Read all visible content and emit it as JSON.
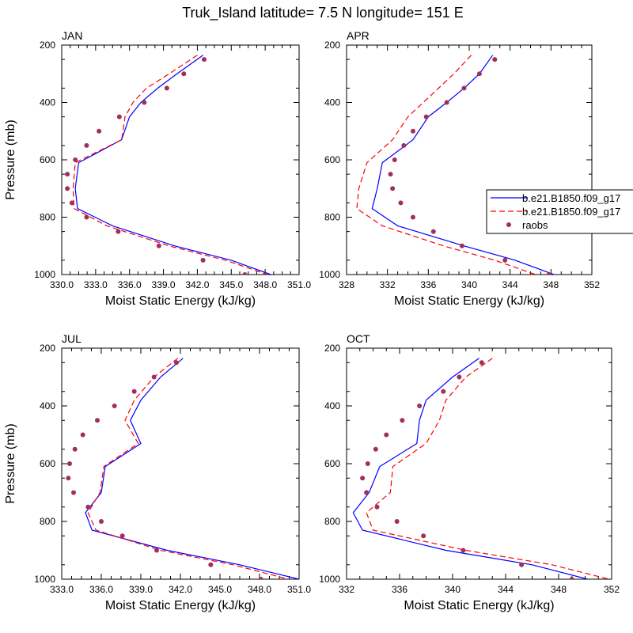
{
  "title": "Truk_Island  latitude= 7.5 N longitude= 151 E",
  "colors": {
    "model1": "#0000ff",
    "model2": "#ff0000",
    "raobs": "#a0305a",
    "axis": "#000000"
  },
  "legend": {
    "placement": "right of APR panel",
    "entries": [
      {
        "label": "b.e21.B1850.f09_g17",
        "style": "solid",
        "color": "#0000ff"
      },
      {
        "label": "b.e21.B1850.f09_g17",
        "style": "dashed",
        "color": "#ff0000"
      },
      {
        "label": "raobs",
        "style": "marker",
        "color": "#a0305a"
      }
    ]
  },
  "chart_data": [
    {
      "type": "line",
      "panel": "JAN",
      "xlabel": "Moist Static Energy (kJ/kg)",
      "ylabel": "Pressure (mb)",
      "xlim": [
        330,
        351
      ],
      "xticks": [
        330,
        333,
        336,
        339,
        342,
        345,
        348,
        351
      ],
      "xtick_labels": [
        "330.0",
        "333.0",
        "336.0",
        "339.0",
        "342.0",
        "345.0",
        "348.0",
        "351.0"
      ],
      "ylim": [
        200,
        1000
      ],
      "yticks": [
        200,
        400,
        600,
        800,
        1000
      ],
      "ytick_labels": [
        "200",
        "400",
        "600",
        "800",
        "1000"
      ],
      "series": [
        {
          "name": "b.e21.B1850.f09_g17 (solid)",
          "p": [
            235,
            300,
            350,
            400,
            450,
            530,
            610,
            700,
            770,
            830,
            900,
            950,
            1000
          ],
          "x": [
            342.5,
            340.2,
            338.5,
            337.0,
            336.0,
            335.3,
            331.5,
            331.2,
            331.4,
            334.5,
            340.0,
            345.0,
            348.5
          ]
        },
        {
          "name": "b.e21.B1850.f09_g17 (dashed)",
          "p": [
            235,
            300,
            350,
            400,
            450,
            530,
            610,
            700,
            770,
            830,
            900,
            950,
            1000
          ],
          "x": [
            342.0,
            339.5,
            337.5,
            336.3,
            335.6,
            335.3,
            331.2,
            331.0,
            331.1,
            334.0,
            339.5,
            344.5,
            348.2
          ]
        },
        {
          "name": "raobs",
          "p": [
            250,
            300,
            350,
            400,
            450,
            500,
            550,
            600,
            650,
            700,
            750,
            800,
            850,
            900,
            950,
            1000
          ],
          "x": [
            342.6,
            340.8,
            339.3,
            337.3,
            335.1,
            333.3,
            332.2,
            331.2,
            330.5,
            330.5,
            330.9,
            332.2,
            335.0,
            338.6,
            342.5,
            346.2
          ]
        }
      ]
    },
    {
      "type": "line",
      "panel": "APR",
      "xlabel": "Moist Static Energy (kJ/kg)",
      "ylabel": "",
      "xlim": [
        328,
        352
      ],
      "xticks": [
        328,
        332,
        336,
        340,
        344,
        348,
        352
      ],
      "xtick_labels": [
        "328",
        "332",
        "336",
        "340",
        "344",
        "348",
        "352"
      ],
      "ylim": [
        200,
        1000
      ],
      "yticks": [
        200,
        400,
        600,
        800,
        1000
      ],
      "ytick_labels": [
        "200",
        "400",
        "600",
        "800",
        "1000"
      ],
      "series": [
        {
          "name": "b.e21.B1850.f09_g17 (solid)",
          "p": [
            235,
            300,
            350,
            400,
            450,
            530,
            610,
            700,
            770,
            830,
            900,
            950,
            1000
          ],
          "x": [
            342.3,
            341.0,
            339.5,
            337.8,
            336.0,
            334.5,
            331.5,
            331.0,
            330.5,
            333.0,
            339.5,
            344.5,
            348.3
          ]
        },
        {
          "name": "b.e21.B1850.f09_g17 (dashed)",
          "p": [
            235,
            300,
            350,
            400,
            450,
            530,
            610,
            700,
            770,
            830,
            900,
            950,
            1000
          ],
          "x": [
            340.2,
            338.5,
            337.0,
            335.5,
            334.0,
            332.5,
            330.0,
            329.2,
            329.0,
            331.5,
            337.5,
            342.5,
            346.5
          ]
        },
        {
          "name": "raobs",
          "p": [
            250,
            300,
            350,
            400,
            450,
            500,
            550,
            600,
            650,
            700,
            750,
            800,
            850,
            900,
            950,
            1000
          ],
          "x": [
            342.5,
            341.0,
            339.5,
            337.8,
            335.8,
            334.5,
            333.6,
            332.7,
            332.3,
            332.5,
            333.3,
            334.5,
            336.5,
            339.3,
            343.5,
            347.8
          ]
        }
      ]
    },
    {
      "type": "line",
      "panel": "JUL",
      "xlabel": "Moist Static Energy (kJ/kg)",
      "ylabel": "Pressure (mb)",
      "xlim": [
        333,
        351
      ],
      "xticks": [
        333,
        336,
        339,
        342,
        345,
        348,
        351
      ],
      "xtick_labels": [
        "333.0",
        "336.0",
        "339.0",
        "342.0",
        "345.0",
        "348.0",
        "351.0"
      ],
      "ylim": [
        200,
        1000
      ],
      "yticks": [
        200,
        400,
        600,
        800,
        1000
      ],
      "ytick_labels": [
        "200",
        "400",
        "600",
        "800",
        "1000"
      ],
      "series": [
        {
          "name": "b.e21.B1850.f09_g17 (solid)",
          "p": [
            235,
            300,
            380,
            450,
            530,
            610,
            700,
            770,
            830,
            900,
            950,
            1000
          ],
          "x": [
            342.2,
            340.5,
            339.0,
            338.2,
            339.0,
            336.3,
            336.0,
            334.8,
            335.3,
            341.0,
            346.5,
            351.0
          ]
        },
        {
          "name": "b.e21.B1850.f09_g17 (dashed)",
          "p": [
            235,
            300,
            380,
            450,
            530,
            610,
            700,
            770,
            830,
            900,
            950,
            1000
          ],
          "x": [
            341.8,
            340.0,
            338.5,
            337.8,
            338.8,
            336.2,
            335.9,
            335.0,
            335.6,
            340.5,
            346.0,
            350.2
          ]
        },
        {
          "name": "raobs",
          "p": [
            250,
            300,
            350,
            400,
            450,
            500,
            550,
            600,
            650,
            700,
            750,
            800,
            850,
            900,
            950,
            1000
          ],
          "x": [
            341.7,
            340.0,
            338.5,
            337.0,
            335.7,
            334.6,
            334.0,
            333.6,
            333.5,
            333.9,
            335.0,
            336.0,
            337.6,
            340.2,
            344.3,
            348.1
          ]
        }
      ]
    },
    {
      "type": "line",
      "panel": "OCT",
      "xlabel": "Moist Static Energy (kJ/kg)",
      "ylabel": "",
      "xlim": [
        332,
        352
      ],
      "xticks": [
        332,
        336,
        340,
        344,
        348,
        352
      ],
      "xtick_labels": [
        "332",
        "336",
        "340",
        "344",
        "348",
        "352"
      ],
      "ylim": [
        200,
        1000
      ],
      "yticks": [
        200,
        400,
        600,
        800,
        1000
      ],
      "ytick_labels": [
        "200",
        "400",
        "600",
        "800",
        "1000"
      ],
      "series": [
        {
          "name": "b.e21.B1850.f09_g17 (solid)",
          "p": [
            235,
            300,
            380,
            450,
            530,
            610,
            700,
            770,
            830,
            900,
            950,
            1000
          ],
          "x": [
            342.0,
            340.0,
            338.0,
            337.5,
            337.3,
            334.5,
            333.7,
            332.5,
            333.2,
            339.5,
            346.0,
            350.2
          ]
        },
        {
          "name": "b.e21.B1850.f09_g17 (dashed)",
          "p": [
            235,
            300,
            380,
            450,
            530,
            610,
            700,
            770,
            830,
            900,
            950,
            1000
          ],
          "x": [
            343.0,
            341.0,
            339.5,
            339.0,
            338.0,
            335.5,
            335.3,
            333.5,
            334.0,
            341.0,
            347.5,
            351.8
          ]
        },
        {
          "name": "raobs",
          "p": [
            250,
            300,
            350,
            400,
            450,
            500,
            550,
            600,
            650,
            700,
            750,
            800,
            850,
            900,
            950,
            1000
          ],
          "x": [
            342.2,
            340.5,
            339.3,
            337.5,
            336.2,
            335.0,
            334.2,
            333.6,
            333.2,
            333.5,
            334.3,
            335.8,
            337.8,
            340.8,
            345.2,
            349.0
          ]
        }
      ]
    }
  ]
}
